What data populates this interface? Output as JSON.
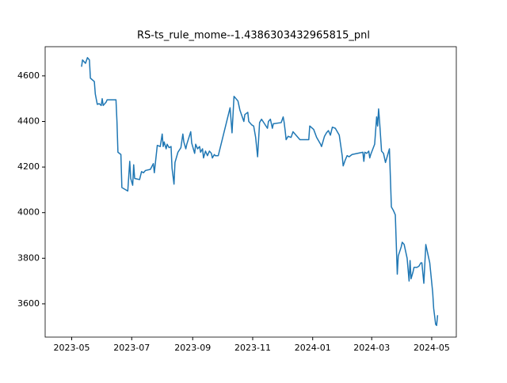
{
  "chart_data": {
    "type": "line",
    "title": "RS-ts_rule_mome--1.4386303432965815_pnl",
    "color": "#1f77b4",
    "x": [
      10,
      11,
      14,
      16,
      18,
      19,
      23,
      24,
      26,
      28,
      30,
      31,
      32,
      35,
      36,
      45,
      46,
      47,
      50,
      51,
      57,
      59,
      60,
      62,
      63,
      64,
      69,
      71,
      73,
      75,
      80,
      83,
      84,
      87,
      90,
      92,
      93,
      94,
      96,
      97,
      99,
      101,
      102,
      104,
      105,
      108,
      111,
      113,
      114,
      116,
      117,
      121,
      122,
      123,
      125,
      126,
      128,
      130,
      131,
      133,
      134,
      136,
      138,
      140,
      142,
      143,
      145,
      146,
      149,
      161,
      163,
      165,
      169,
      171,
      175,
      176,
      179,
      180,
      183,
      185,
      187,
      189,
      191,
      193,
      196,
      199,
      200,
      202,
      204,
      205,
      213,
      215,
      216,
      217,
      218,
      220,
      223,
      225,
      228,
      232,
      241,
      242,
      246,
      249,
      253,
      254,
      257,
      259,
      261,
      263,
      265,
      268,
      272,
      275,
      276,
      278,
      280,
      282,
      285,
      296,
      297,
      298,
      300,
      302,
      303,
      304,
      308,
      310,
      311,
      312,
      313,
      315,
      317,
      319,
      320,
      322,
      323,
      325,
      327,
      329,
      331,
      332,
      335,
      336,
      338,
      341,
      343,
      344,
      345,
      347,
      348,
      351,
      353,
      355,
      356,
      358,
      360,
      362,
      364,
      367,
      368,
      370,
      371,
      372
    ],
    "values": [
      4640,
      4670,
      4655,
      4680,
      4670,
      4590,
      4575,
      4520,
      4475,
      4478,
      4470,
      4500,
      4470,
      4485,
      4495,
      4495,
      4400,
      4265,
      4255,
      4110,
      4095,
      4225,
      4150,
      4120,
      4210,
      4150,
      4145,
      4180,
      4175,
      4185,
      4190,
      4215,
      4175,
      4295,
      4290,
      4345,
      4290,
      4310,
      4280,
      4300,
      4285,
      4290,
      4195,
      4125,
      4220,
      4265,
      4285,
      4345,
      4310,
      4280,
      4300,
      4355,
      4305,
      4290,
      4260,
      4300,
      4280,
      4290,
      4265,
      4280,
      4240,
      4270,
      4250,
      4270,
      4260,
      4240,
      4255,
      4250,
      4250,
      4460,
      4350,
      4510,
      4490,
      4450,
      4400,
      4430,
      4440,
      4400,
      4385,
      4380,
      4330,
      4245,
      4395,
      4410,
      4390,
      4370,
      4400,
      4410,
      4370,
      4390,
      4395,
      4420,
      4395,
      4360,
      4320,
      4335,
      4330,
      4355,
      4340,
      4320,
      4320,
      4380,
      4365,
      4330,
      4300,
      4290,
      4335,
      4350,
      4360,
      4340,
      4375,
      4370,
      4340,
      4250,
      4205,
      4230,
      4250,
      4245,
      4255,
      4265,
      4225,
      4265,
      4260,
      4270,
      4240,
      4255,
      4300,
      4420,
      4380,
      4455,
      4400,
      4270,
      4260,
      4220,
      4235,
      4265,
      4280,
      4025,
      4010,
      3990,
      3730,
      3810,
      3850,
      3870,
      3860,
      3800,
      3700,
      3790,
      3710,
      3740,
      3760,
      3760,
      3765,
      3780,
      3780,
      3690,
      3860,
      3820,
      3780,
      3650,
      3580,
      3510,
      3505,
      3550
    ],
    "xlim": [
      -27,
      391
    ],
    "ylim": [
      3454,
      4728
    ],
    "xticks": [
      {
        "value": 0,
        "label": "2023-05"
      },
      {
        "value": 61,
        "label": "2023-07"
      },
      {
        "value": 123,
        "label": "2023-09"
      },
      {
        "value": 184,
        "label": "2023-11"
      },
      {
        "value": 245,
        "label": "2024-01"
      },
      {
        "value": 305,
        "label": "2024-03"
      },
      {
        "value": 366,
        "label": "2024-05"
      }
    ],
    "yticks": [
      3600,
      3800,
      4000,
      4200,
      4400,
      4600
    ]
  }
}
